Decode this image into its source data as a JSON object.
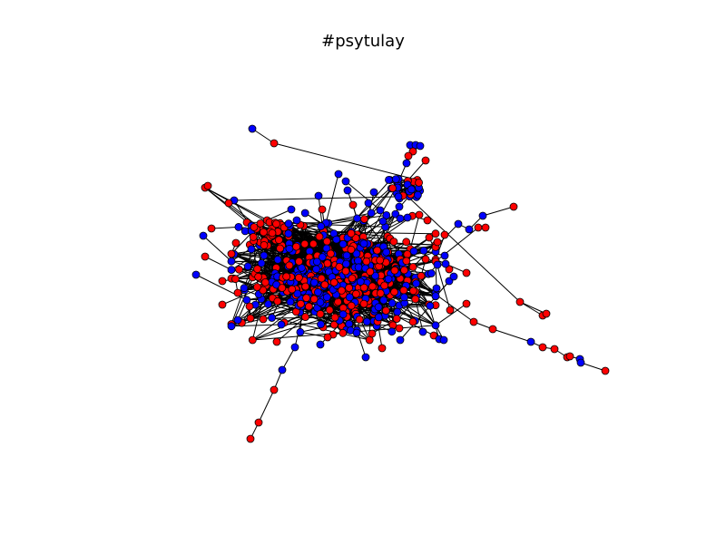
{
  "figure": {
    "title": "#psytulay"
  },
  "legend_colors": {
    "node_red": "#ff0000",
    "node_blue": "#0000ff",
    "edge": "#000000",
    "node_outline": "#000000"
  }
}
